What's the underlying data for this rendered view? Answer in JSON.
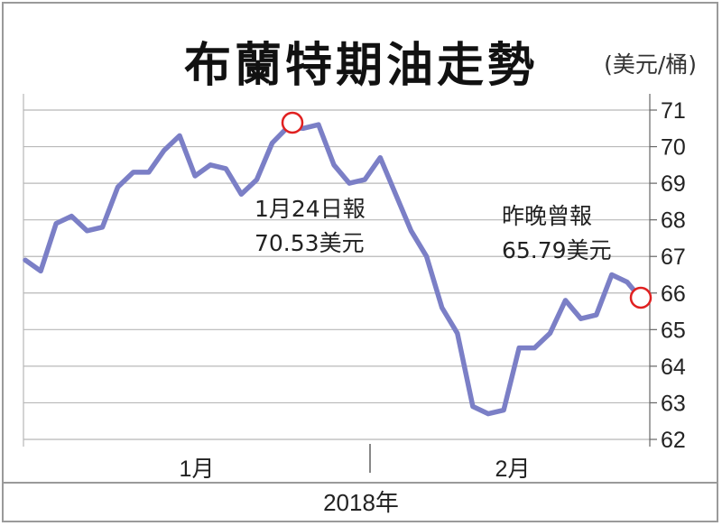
{
  "title": "布蘭特期油走勢",
  "unit": "(美元/桶)",
  "chart_data": {
    "type": "line",
    "title": "布蘭特期油走勢",
    "xlabel": "2018年",
    "ylabel": "(美元/桶)",
    "ylim": [
      62,
      71
    ],
    "yticks": [
      62,
      63,
      64,
      65,
      66,
      67,
      68,
      69,
      70,
      71
    ],
    "grid": true,
    "month_labels": [
      "1月",
      "2月"
    ],
    "year_label": "2018年",
    "series": [
      {
        "color": "#7b7fc6",
        "values": [
          66.9,
          66.6,
          67.9,
          68.1,
          67.7,
          67.8,
          68.9,
          69.3,
          69.3,
          69.9,
          70.3,
          69.2,
          69.5,
          69.4,
          68.7,
          69.1,
          70.1,
          70.53,
          70.5,
          70.6,
          69.5,
          69.0,
          69.1,
          69.7,
          68.7,
          67.7,
          67.0,
          65.6,
          64.9,
          62.9,
          62.7,
          62.8,
          64.5,
          64.5,
          64.9,
          65.8,
          65.3,
          65.4,
          66.5,
          66.3,
          65.79
        ]
      }
    ],
    "annotations": [
      {
        "line1": "1月24日報",
        "line2": "70.53美元",
        "index": 17,
        "value": 70.53
      },
      {
        "line1": "昨晚曾報",
        "line2": "65.79美元",
        "index": 40,
        "value": 65.79
      }
    ],
    "marker_color": "#e02020"
  }
}
